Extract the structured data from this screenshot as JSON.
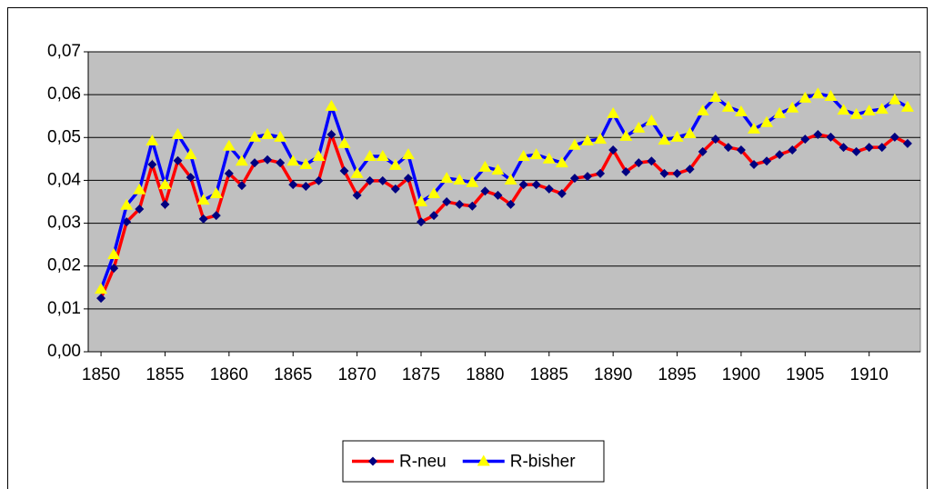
{
  "chart_data": {
    "type": "line",
    "x": [
      1850,
      1851,
      1852,
      1853,
      1854,
      1855,
      1856,
      1857,
      1858,
      1859,
      1860,
      1861,
      1862,
      1863,
      1864,
      1865,
      1866,
      1867,
      1868,
      1869,
      1870,
      1871,
      1872,
      1873,
      1874,
      1875,
      1876,
      1877,
      1878,
      1879,
      1880,
      1881,
      1882,
      1883,
      1884,
      1885,
      1886,
      1887,
      1888,
      1889,
      1890,
      1891,
      1892,
      1893,
      1894,
      1895,
      1896,
      1897,
      1898,
      1899,
      1900,
      1901,
      1902,
      1903,
      1904,
      1905,
      1906,
      1907,
      1908,
      1909,
      1910,
      1911,
      1912,
      1913
    ],
    "series": [
      {
        "name": "R-neu",
        "color": "#ff0000",
        "marker_color": "#000080",
        "marker": "diamond",
        "values": [
          0.0125,
          0.0195,
          0.0303,
          0.0333,
          0.0437,
          0.0344,
          0.0446,
          0.0407,
          0.031,
          0.0318,
          0.0416,
          0.0388,
          0.0441,
          0.0448,
          0.0441,
          0.039,
          0.0386,
          0.0399,
          0.0507,
          0.0422,
          0.0365,
          0.0399,
          0.0399,
          0.038,
          0.0405,
          0.0303,
          0.0318,
          0.035,
          0.0344,
          0.034,
          0.0375,
          0.0365,
          0.0344,
          0.039,
          0.039,
          0.038,
          0.0369,
          0.0405,
          0.0409,
          0.0416,
          0.0471,
          0.042,
          0.0441,
          0.0445,
          0.0416,
          0.0416,
          0.0426,
          0.0467,
          0.0496,
          0.0477,
          0.0471,
          0.0437,
          0.0445,
          0.046,
          0.0471,
          0.0496,
          0.0507,
          0.0501,
          0.0477,
          0.0467,
          0.0477,
          0.0477,
          0.0501,
          0.0486
        ]
      },
      {
        "name": "R-bisher",
        "color": "#0000ff",
        "marker_color": "#ffff00",
        "marker": "triangle",
        "values": [
          0.0146,
          0.0227,
          0.0342,
          0.0378,
          0.0492,
          0.039,
          0.0507,
          0.046,
          0.0354,
          0.0369,
          0.048,
          0.0445,
          0.0501,
          0.0507,
          0.0501,
          0.0445,
          0.0437,
          0.0456,
          0.0573,
          0.0486,
          0.0416,
          0.0456,
          0.0456,
          0.0435,
          0.046,
          0.035,
          0.0369,
          0.0405,
          0.0401,
          0.0395,
          0.0431,
          0.0424,
          0.0401,
          0.0456,
          0.046,
          0.045,
          0.0441,
          0.0482,
          0.0492,
          0.0496,
          0.0556,
          0.0503,
          0.0522,
          0.0539,
          0.0494,
          0.0501,
          0.0509,
          0.0562,
          0.0594,
          0.0571,
          0.056,
          0.052,
          0.0535,
          0.0556,
          0.0569,
          0.0592,
          0.0602,
          0.0596,
          0.0564,
          0.0554,
          0.0562,
          0.0566,
          0.0588,
          0.0571
        ]
      }
    ],
    "xlim": [
      1849,
      1914
    ],
    "xticks": [
      1850,
      1855,
      1860,
      1865,
      1870,
      1875,
      1880,
      1885,
      1890,
      1895,
      1900,
      1905,
      1910
    ],
    "ylim": [
      0,
      0.07
    ],
    "yticks": [
      {
        "value": 0,
        "label": "0,00"
      },
      {
        "value": 0.01,
        "label": "0,01"
      },
      {
        "value": 0.02,
        "label": "0,02"
      },
      {
        "value": 0.03,
        "label": "0,03"
      },
      {
        "value": 0.04,
        "label": "0,04"
      },
      {
        "value": 0.05,
        "label": "0,05"
      },
      {
        "value": 0.06,
        "label": "0,06"
      },
      {
        "value": 0.07,
        "label": "0,07"
      }
    ],
    "grid": true,
    "plot_background": "#c0c0c0",
    "legend": "bottom"
  }
}
